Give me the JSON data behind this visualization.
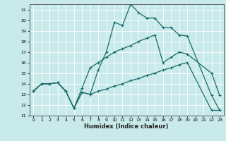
{
  "xlabel": "Humidex (Indice chaleur)",
  "bg_color": "#c8eaea",
  "grid_color": "#ffffff",
  "line_color": "#1a6b6b",
  "xlim": [
    -0.5,
    23.5
  ],
  "ylim": [
    11,
    21.5
  ],
  "xticks": [
    0,
    1,
    2,
    3,
    4,
    5,
    6,
    7,
    8,
    9,
    10,
    11,
    12,
    13,
    14,
    15,
    16,
    17,
    18,
    19,
    20,
    21,
    22,
    23
  ],
  "yticks": [
    11,
    12,
    13,
    14,
    15,
    16,
    17,
    18,
    19,
    20,
    21
  ],
  "line1_x": [
    0,
    1,
    2,
    3,
    4,
    5,
    6,
    7,
    8,
    9,
    10,
    11,
    12,
    13,
    14,
    15,
    16,
    17,
    18,
    19,
    22,
    23
  ],
  "line1_y": [
    13.3,
    14.0,
    14.0,
    14.1,
    13.3,
    11.7,
    13.2,
    13.0,
    15.3,
    17.0,
    19.8,
    19.5,
    21.5,
    20.7,
    20.2,
    20.2,
    19.3,
    19.3,
    18.6,
    18.5,
    12.9,
    11.5
  ],
  "line2_x": [
    0,
    1,
    2,
    3,
    4,
    5,
    6,
    7,
    8,
    9,
    10,
    11,
    12,
    13,
    14,
    15,
    16,
    17,
    18,
    19,
    22,
    23
  ],
  "line2_y": [
    13.3,
    14.0,
    14.0,
    14.1,
    13.3,
    11.7,
    13.6,
    15.5,
    16.0,
    16.5,
    17.0,
    17.3,
    17.6,
    18.0,
    18.3,
    18.6,
    16.0,
    16.5,
    17.0,
    16.8,
    15.0,
    12.9
  ],
  "line3_x": [
    0,
    1,
    2,
    3,
    4,
    5,
    6,
    7,
    8,
    9,
    10,
    11,
    12,
    13,
    14,
    15,
    16,
    17,
    18,
    19,
    22,
    23
  ],
  "line3_y": [
    13.3,
    14.0,
    14.0,
    14.1,
    13.3,
    11.7,
    13.2,
    13.0,
    13.3,
    13.5,
    13.8,
    14.0,
    14.3,
    14.5,
    14.8,
    15.0,
    15.3,
    15.5,
    15.8,
    16.0,
    11.5,
    11.5
  ]
}
